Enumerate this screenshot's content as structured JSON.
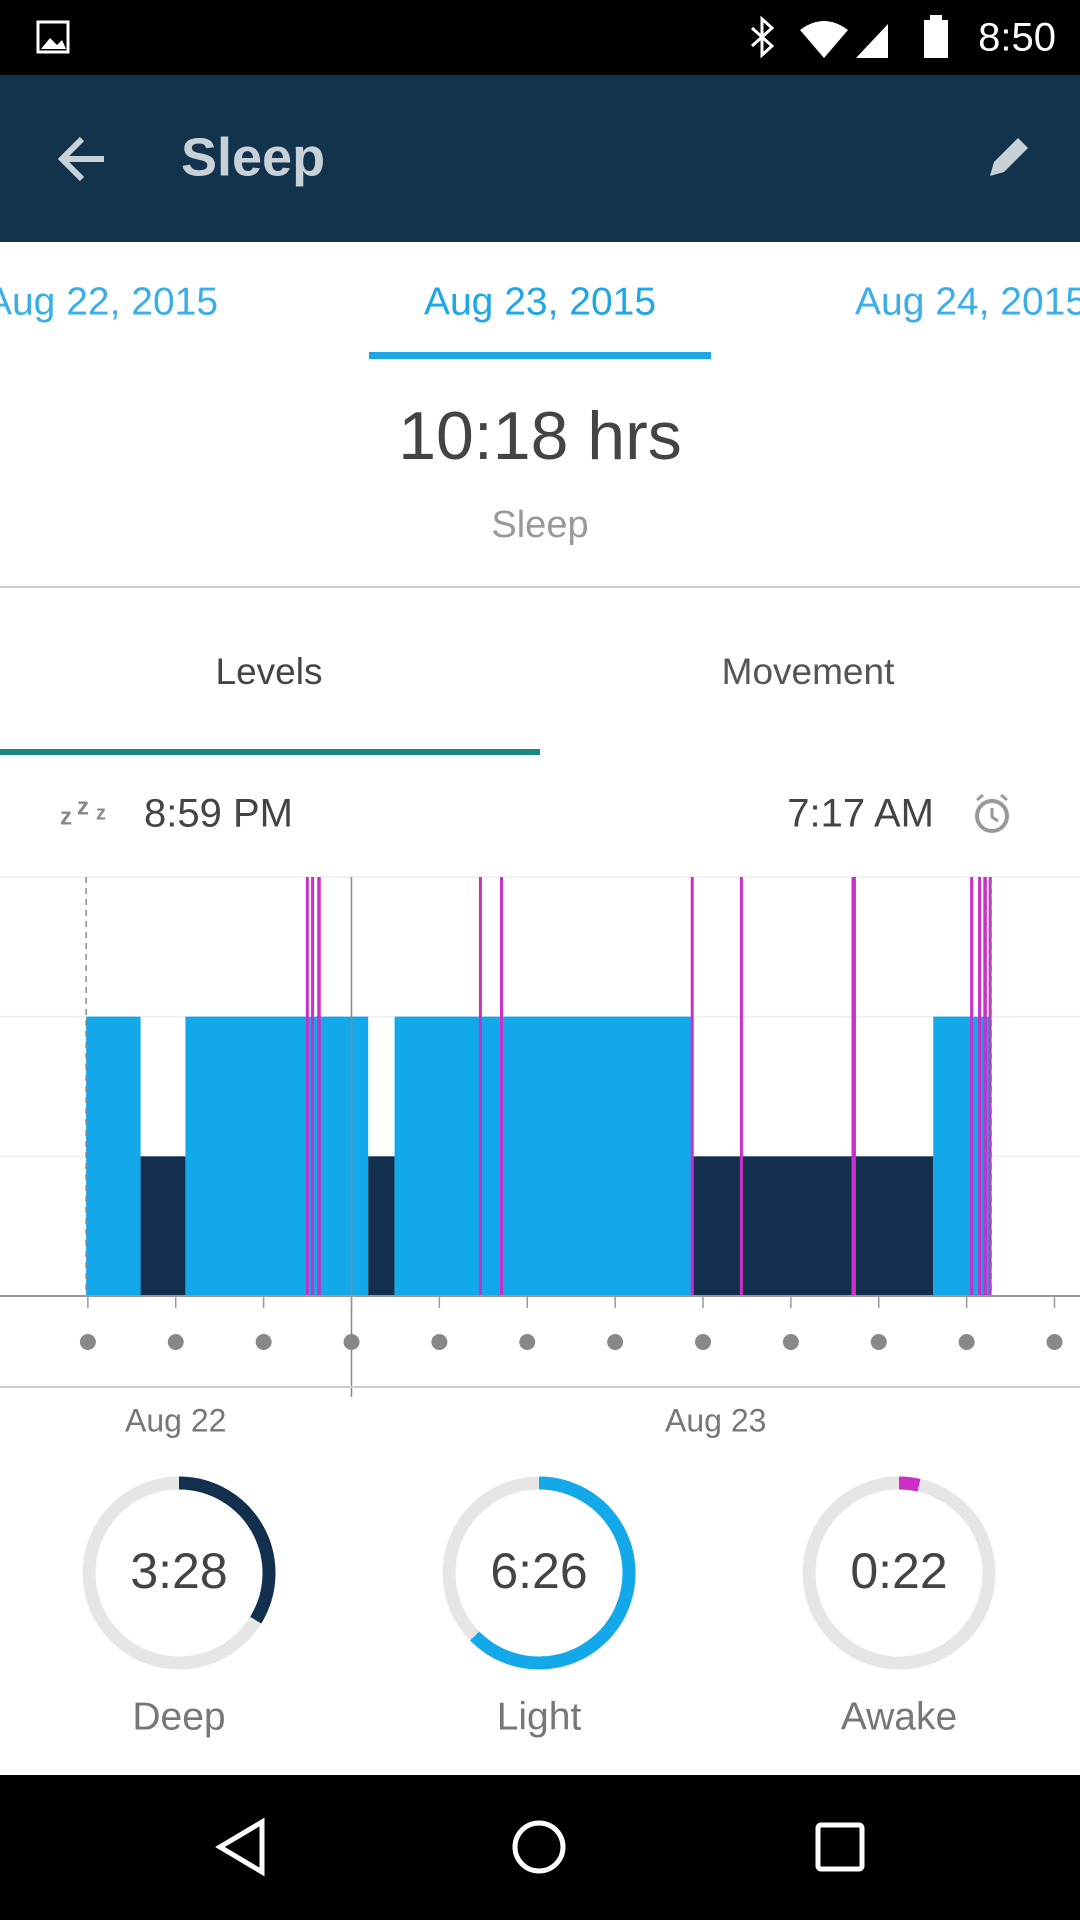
{
  "status_bar": {
    "time": "8:50"
  },
  "app_bar": {
    "title": "Sleep"
  },
  "date_tabs": [
    "Aug 22, 2015",
    "Aug 23, 2015",
    "Aug 24, 2015"
  ],
  "summary": {
    "value": "10:18 hrs",
    "label": "Sleep"
  },
  "tabs": [
    "Levels",
    "Movement"
  ],
  "chart_data": {
    "type": "hypnogram",
    "start_label": "8:59 PM",
    "end_label": "7:17 AM",
    "xlim": [
      -4,
      8.29
    ],
    "xticks": [
      -3,
      -2,
      -1,
      0,
      1,
      2,
      3,
      4,
      5,
      6,
      7,
      8
    ],
    "ylim": [
      0,
      3
    ],
    "yticks": [
      1,
      2,
      3
    ],
    "grid": true,
    "sleep_window": [
      -3.02,
      7.28
    ],
    "day_boundary": 0,
    "days": [
      "Aug 22",
      "Aug 23"
    ],
    "level_colors": [
      "#12304d",
      "#13a8ea",
      "#cc2fc8"
    ],
    "segments": {
      "start": [
        -3.02,
        -2.4,
        -1.89,
        0.19,
        0.49,
        3.87,
        6.62,
        -0.52,
        -0.46,
        -0.39,
        1.45,
        1.69,
        3.86,
        4.42,
        5.69,
        7.04,
        7.13,
        7.19,
        7.25
      ],
      "end": [
        -2.4,
        -1.89,
        0.19,
        0.49,
        3.87,
        6.62,
        7.28,
        -0.49,
        -0.44,
        -0.35,
        1.47,
        1.71,
        3.89,
        4.44,
        5.74,
        7.06,
        7.15,
        7.23,
        7.28
      ],
      "level": [
        2,
        1,
        2,
        1,
        2,
        1,
        2,
        3,
        3,
        3,
        3,
        3,
        3,
        3,
        3,
        3,
        3,
        3,
        3
      ]
    }
  },
  "rings": [
    {
      "value": "3:28",
      "label": "Deep",
      "color": "#12304d"
    },
    {
      "value": "6:26",
      "label": "Light",
      "color": "#13a8ea"
    },
    {
      "value": "0:22",
      "label": "Awake",
      "color": "#cc2fc8"
    }
  ]
}
